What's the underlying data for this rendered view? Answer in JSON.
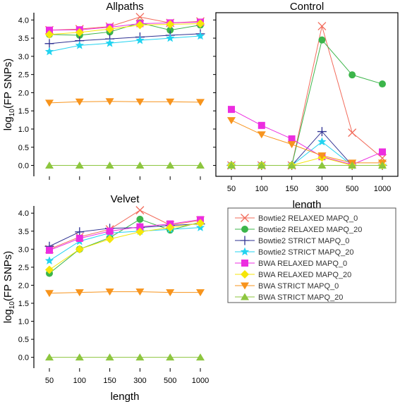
{
  "chart_data": [
    {
      "type": "line",
      "title": "Allpaths",
      "xlabel": "",
      "ylabel": "log10(FP SNPs)",
      "ylim": [
        -0.3,
        4.2
      ],
      "yticks": [
        "0.0",
        "0.5",
        "1.0",
        "1.5",
        "2.0",
        "2.5",
        "3.0",
        "3.5",
        "4.0"
      ],
      "categories": [
        "50",
        "100",
        "150",
        "300",
        "500",
        "1000"
      ],
      "show_x_tick_labels": false,
      "series": [
        {
          "name": "Bowtie2 RELAXED MAPQ_0",
          "values": [
            3.72,
            3.75,
            3.82,
            4.08,
            3.92,
            3.96
          ]
        },
        {
          "name": "Bowtie2 RELAXED MAPQ_20",
          "values": [
            3.6,
            3.58,
            3.67,
            3.92,
            3.72,
            3.86
          ]
        },
        {
          "name": "Bowtie2 STRICT MAPQ_0",
          "values": [
            3.35,
            3.43,
            3.48,
            3.53,
            3.58,
            3.62
          ]
        },
        {
          "name": "Bowtie2 STRICT MAPQ_20",
          "values": [
            3.13,
            3.3,
            3.36,
            3.44,
            3.5,
            3.56
          ]
        },
        {
          "name": "BWA RELAXED MAPQ_0",
          "values": [
            3.72,
            3.73,
            3.8,
            3.9,
            3.92,
            3.94
          ]
        },
        {
          "name": "BWA RELAXED MAPQ_20",
          "values": [
            3.6,
            3.66,
            3.75,
            3.86,
            3.88,
            3.9
          ]
        },
        {
          "name": "BWA STRICT MAPQ_0",
          "values": [
            1.72,
            1.75,
            1.76,
            1.75,
            1.75,
            1.74
          ]
        },
        {
          "name": "BWA STRICT MAPQ_20",
          "values": [
            0.0,
            0.0,
            0.0,
            0.0,
            0.0,
            0.0
          ]
        }
      ]
    },
    {
      "type": "line",
      "title": "Control",
      "xlabel": "length",
      "ylabel": "",
      "ylim": [
        -0.3,
        4.2
      ],
      "categories": [
        "50",
        "100",
        "150",
        "300",
        "500",
        "1000"
      ],
      "show_x_tick_labels": true,
      "series": [
        {
          "name": "Bowtie2 RELAXED MAPQ_0",
          "values": [
            0.0,
            0.0,
            0.0,
            3.83,
            0.9,
            0.2
          ]
        },
        {
          "name": "Bowtie2 RELAXED MAPQ_20",
          "values": [
            0.0,
            0.0,
            0.0,
            3.45,
            2.49,
            2.24
          ]
        },
        {
          "name": "Bowtie2 STRICT MAPQ_0",
          "values": [
            0.0,
            0.0,
            0.0,
            0.93,
            0.0,
            0.0
          ]
        },
        {
          "name": "Bowtie2 STRICT MAPQ_20",
          "values": [
            0.0,
            0.0,
            0.0,
            0.65,
            0.0,
            0.0
          ]
        },
        {
          "name": "BWA RELAXED MAPQ_0",
          "values": [
            1.54,
            1.1,
            0.73,
            0.24,
            0.02,
            0.37
          ]
        },
        {
          "name": "BWA RELAXED MAPQ_20",
          "values": [
            0.0,
            0.0,
            0.0,
            0.22,
            0.0,
            0.0
          ]
        },
        {
          "name": "BWA STRICT MAPQ_0",
          "values": [
            1.24,
            0.85,
            0.58,
            0.27,
            0.07,
            0.07
          ]
        },
        {
          "name": "BWA STRICT MAPQ_20",
          "values": [
            0.0,
            0.0,
            0.0,
            0.0,
            0.0,
            0.0
          ]
        }
      ]
    },
    {
      "type": "line",
      "title": "Velvet",
      "xlabel": "length",
      "ylabel": "log10(FP SNPs)",
      "ylim": [
        -0.3,
        4.2
      ],
      "yticks": [
        "0.0",
        "0.5",
        "1.0",
        "1.5",
        "2.0",
        "2.5",
        "3.0",
        "3.5",
        "4.0"
      ],
      "categories": [
        "50",
        "100",
        "150",
        "300",
        "500",
        "1000"
      ],
      "show_x_tick_labels": true,
      "series": [
        {
          "name": "Bowtie2 RELAXED MAPQ_0",
          "values": [
            3.0,
            3.34,
            3.55,
            4.08,
            3.67,
            3.8
          ]
        },
        {
          "name": "Bowtie2 RELAXED MAPQ_20",
          "values": [
            2.33,
            3.0,
            3.32,
            3.83,
            3.53,
            3.75
          ]
        },
        {
          "name": "Bowtie2 STRICT MAPQ_0",
          "values": [
            3.08,
            3.48,
            3.58,
            3.6,
            3.66,
            3.7
          ]
        },
        {
          "name": "Bowtie2 STRICT MAPQ_20",
          "values": [
            2.68,
            3.22,
            3.45,
            3.5,
            3.55,
            3.6
          ]
        },
        {
          "name": "BWA RELAXED MAPQ_0",
          "values": [
            2.97,
            3.3,
            3.5,
            3.62,
            3.7,
            3.82
          ]
        },
        {
          "name": "BWA RELAXED MAPQ_20",
          "values": [
            2.43,
            3.0,
            3.28,
            3.48,
            3.6,
            3.72
          ]
        },
        {
          "name": "BWA STRICT MAPQ_0",
          "values": [
            1.78,
            1.8,
            1.82,
            1.82,
            1.8,
            1.8
          ]
        },
        {
          "name": "BWA STRICT MAPQ_20",
          "values": [
            0.0,
            0.0,
            0.0,
            0.0,
            0.0,
            0.0
          ]
        }
      ]
    }
  ],
  "legend": {
    "placement": "bottom-right",
    "items": [
      {
        "label": "Bowtie2 RELAXED MAPQ_0",
        "color": "#f26b5b",
        "marker": "cross"
      },
      {
        "label": "Bowtie2 RELAXED MAPQ_20",
        "color": "#3cb54a",
        "marker": "circle"
      },
      {
        "label": "Bowtie2 STRICT MAPQ_0",
        "color": "#2e3192",
        "marker": "plus"
      },
      {
        "label": "Bowtie2 STRICT MAPQ_20",
        "color": "#22d3f0",
        "marker": "star"
      },
      {
        "label": "BWA RELAXED MAPQ_0",
        "color": "#ec2de0",
        "marker": "square"
      },
      {
        "label": "BWA RELAXED MAPQ_20",
        "color": "#f5e60a",
        "marker": "diamond"
      },
      {
        "label": "BWA STRICT MAPQ_0",
        "color": "#f7941d",
        "marker": "triangle-down"
      },
      {
        "label": "BWA STRICT MAPQ_20",
        "color": "#8dc63f",
        "marker": "triangle-up"
      }
    ]
  }
}
